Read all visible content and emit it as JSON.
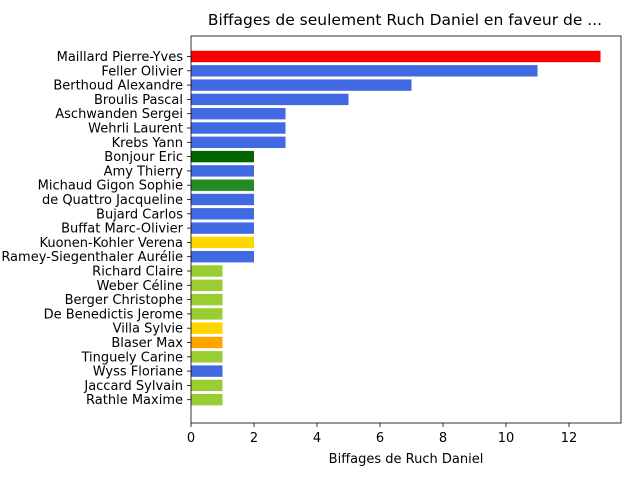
{
  "chart_data": {
    "type": "bar",
    "orientation": "horizontal",
    "title": "Biffages de seulement Ruch Daniel en faveur de ...",
    "xlabel": "Biffages de Ruch Daniel",
    "ylabel": "",
    "xlim": [
      0,
      13.65
    ],
    "xticks": [
      0,
      2,
      4,
      6,
      8,
      10,
      12
    ],
    "grid": false,
    "categories": [
      "Maillard Pierre-Yves",
      "Feller Olivier",
      "Berthoud Alexandre",
      "Broulis Pascal",
      "Aschwanden Sergei",
      "Wehrli Laurent",
      "Krebs Yann",
      "Bonjour Eric",
      "Amy Thierry",
      "Michaud Gigon Sophie",
      "de Quattro Jacqueline",
      "Bujard Carlos",
      "Buffat Marc-Olivier",
      "Kuonen-Kohler Verena",
      "Ramey-Siegenthaler Aurélie",
      "Richard Claire",
      "Weber Céline",
      "Berger Christophe",
      "De Benedictis Jerome",
      "Villa Sylvie",
      "Blaser Max",
      "Tinguely Carine",
      "Wyss Floriane",
      "Jaccard Sylvain",
      "Rathle Maxime"
    ],
    "values": [
      13,
      11,
      7,
      5,
      3,
      3,
      3,
      2,
      2,
      2,
      2,
      2,
      2,
      2,
      2,
      1,
      1,
      1,
      1,
      1,
      1,
      1,
      1,
      1,
      1
    ],
    "colors": [
      "#ff0000",
      "#4169e1",
      "#4169e1",
      "#4169e1",
      "#4169e1",
      "#4169e1",
      "#4169e1",
      "#006400",
      "#4169e1",
      "#228b22",
      "#4169e1",
      "#4169e1",
      "#4169e1",
      "#ffd700",
      "#4169e1",
      "#9acd32",
      "#9acd32",
      "#9acd32",
      "#9acd32",
      "#ffd700",
      "#ffa500",
      "#9acd32",
      "#4169e1",
      "#9acd32",
      "#9acd32"
    ]
  }
}
